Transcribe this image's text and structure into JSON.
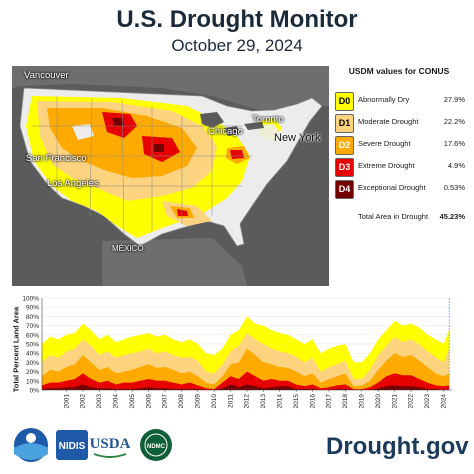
{
  "title": "U.S. Drought Monitor",
  "date": "October 29, 2024",
  "map": {
    "cities": [
      "Vancouver",
      "Chicago",
      "Toronto",
      "New York",
      "San Francisco",
      "Los Angeles",
      "MÉXICO"
    ],
    "colors": {
      "ocean": "#5b5b5b",
      "land": "#ececec",
      "border": "#8a8a8a"
    }
  },
  "legend": {
    "title": "USDM values for CONUS",
    "items": [
      {
        "code": "D0",
        "label": "Abnormally Dry",
        "value": "27.9%",
        "color": "#ffff00",
        "text": "#000000"
      },
      {
        "code": "D1",
        "label": "Moderate Drought",
        "value": "22.2%",
        "color": "#fcd37f",
        "text": "#000000"
      },
      {
        "code": "D2",
        "label": "Severe Drought",
        "value": "17.6%",
        "color": "#ffaa00",
        "text": "#ffffff"
      },
      {
        "code": "D3",
        "label": "Extreme Drought",
        "value": "4.9%",
        "color": "#e60000",
        "text": "#ffffff"
      },
      {
        "code": "D4",
        "label": "Exceptional Drought",
        "value": "0.53%",
        "color": "#730000",
        "text": "#ffffff"
      }
    ],
    "total_label": "Total Area in Drought",
    "total_value": "45.23%"
  },
  "chart_data": {
    "type": "area",
    "ylabel": "Total Percent Land Area",
    "ylim": [
      0,
      100
    ],
    "yticks": [
      "0%",
      "10%",
      "20%",
      "30%",
      "40%",
      "50%",
      "60%",
      "70%",
      "80%",
      "90%",
      "100%"
    ],
    "xticks": [
      "2001",
      "2002",
      "2003",
      "2004",
      "2005",
      "2006",
      "2007",
      "2008",
      "2009",
      "2010",
      "2011",
      "2012",
      "2013",
      "2014",
      "2015",
      "2016",
      "2017",
      "2018",
      "2019",
      "2020",
      "2021",
      "2022",
      "2023",
      "2024"
    ],
    "x": [
      2000.0,
      2000.5,
      2001.0,
      2001.5,
      2002.0,
      2002.5,
      2003.0,
      2003.5,
      2004.0,
      2004.5,
      2005.0,
      2005.5,
      2006.0,
      2006.5,
      2007.0,
      2007.5,
      2008.0,
      2008.5,
      2009.0,
      2009.5,
      2010.0,
      2010.5,
      2011.0,
      2011.5,
      2012.0,
      2012.5,
      2013.0,
      2013.5,
      2014.0,
      2014.5,
      2015.0,
      2015.5,
      2016.0,
      2016.5,
      2017.0,
      2017.5,
      2018.0,
      2018.5,
      2019.0,
      2019.5,
      2020.0,
      2020.5,
      2021.0,
      2021.5,
      2022.0,
      2022.5,
      2023.0,
      2023.5,
      2024.0,
      2024.5,
      2024.83
    ],
    "series": [
      {
        "name": "D0",
        "color": "#ffff00",
        "values": [
          50,
          58,
          55,
          60,
          62,
          72,
          65,
          55,
          60,
          52,
          55,
          58,
          60,
          62,
          58,
          60,
          55,
          52,
          55,
          50,
          40,
          38,
          45,
          60,
          65,
          80,
          72,
          70,
          65,
          62,
          60,
          55,
          50,
          55,
          40,
          45,
          48,
          50,
          30,
          30,
          40,
          55,
          65,
          75,
          70,
          72,
          68,
          60,
          55,
          50,
          66
        ]
      },
      {
        "name": "D1",
        "color": "#fcd37f",
        "values": [
          30,
          38,
          35,
          42,
          45,
          55,
          48,
          38,
          42,
          35,
          38,
          40,
          42,
          45,
          40,
          42,
          38,
          35,
          36,
          32,
          20,
          18,
          28,
          42,
          48,
          62,
          55,
          50,
          45,
          42,
          40,
          36,
          30,
          35,
          20,
          25,
          28,
          32,
          12,
          12,
          22,
          38,
          48,
          58,
          52,
          55,
          50,
          42,
          36,
          30,
          45
        ]
      },
      {
        "name": "D2",
        "color": "#ffaa00",
        "values": [
          15,
          22,
          20,
          25,
          28,
          38,
          30,
          22,
          25,
          18,
          20,
          22,
          25,
          28,
          24,
          25,
          22,
          18,
          20,
          15,
          8,
          6,
          15,
          28,
          30,
          45,
          38,
          30,
          28,
          25,
          24,
          20,
          15,
          18,
          8,
          12,
          15,
          18,
          4,
          5,
          10,
          22,
          32,
          40,
          36,
          38,
          32,
          25,
          18,
          15,
          18
        ]
      },
      {
        "name": "D3",
        "color": "#e60000",
        "values": [
          5,
          8,
          8,
          10,
          12,
          18,
          12,
          8,
          10,
          6,
          8,
          8,
          10,
          12,
          10,
          10,
          8,
          6,
          8,
          5,
          2,
          1,
          8,
          15,
          12,
          20,
          15,
          10,
          12,
          10,
          10,
          6,
          4,
          6,
          2,
          3,
          5,
          6,
          1,
          1,
          3,
          8,
          15,
          18,
          16,
          16,
          12,
          8,
          5,
          4,
          5
        ]
      },
      {
        "name": "D4",
        "color": "#730000",
        "values": [
          1,
          2,
          2,
          3,
          3,
          6,
          3,
          2,
          2,
          1,
          1,
          1,
          2,
          3,
          2,
          2,
          1,
          1,
          1,
          1,
          0,
          0,
          2,
          6,
          3,
          6,
          4,
          2,
          3,
          4,
          4,
          1,
          1,
          1,
          0,
          0,
          1,
          1,
          0,
          0,
          0,
          2,
          4,
          5,
          4,
          4,
          3,
          1,
          1,
          0,
          0.5
        ]
      }
    ]
  },
  "footer": {
    "site": "Drought.gov",
    "logos": [
      "NOAA",
      "NIDIS",
      "USDA",
      "NDMC"
    ]
  }
}
